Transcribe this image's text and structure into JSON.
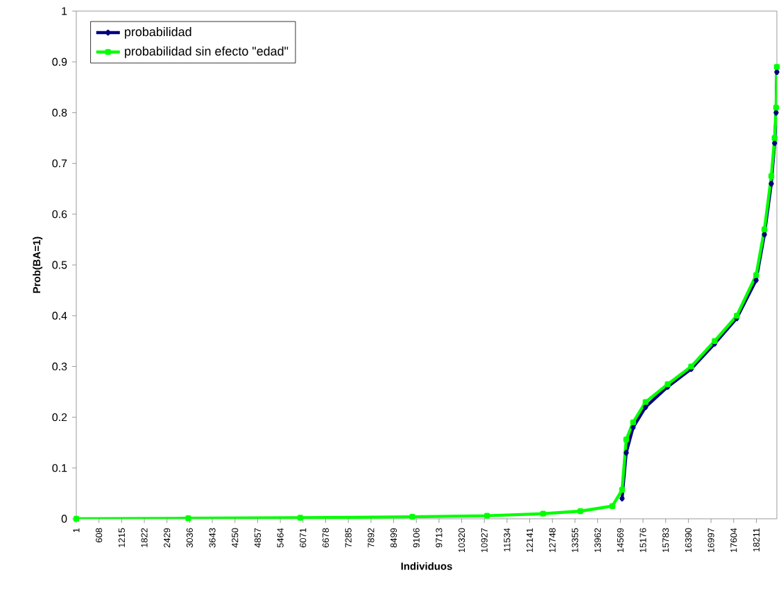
{
  "chart_data": {
    "type": "line",
    "xlabel": "Individuos",
    "ylabel": "Prob(BA=1)",
    "x": [
      1,
      3000,
      6000,
      9000,
      11000,
      12500,
      13500,
      14357,
      14616,
      14727,
      14912,
      15245,
      15837,
      16466,
      17095,
      17687,
      18205,
      18427,
      18612,
      18700,
      18740,
      18760
    ],
    "series": [
      {
        "name": "probabilidad",
        "color": "#000080",
        "marker": "diamond",
        "values": [
          null,
          null,
          null,
          null,
          null,
          null,
          null,
          null,
          0.04,
          0.13,
          0.18,
          0.22,
          0.26,
          0.295,
          0.345,
          0.395,
          0.47,
          0.56,
          0.66,
          0.74,
          0.8,
          0.88
        ]
      },
      {
        "name": "probabilidad sin efecto \"edad\"",
        "color": "#00ff00",
        "marker": "square",
        "values": [
          0,
          0.001,
          0.002,
          0.004,
          0.006,
          0.01,
          0.015,
          0.025,
          0.057,
          0.156,
          0.19,
          0.23,
          0.265,
          0.3,
          0.35,
          0.4,
          0.48,
          0.57,
          0.675,
          0.75,
          0.81,
          0.89
        ]
      }
    ],
    "xlim": [
      1,
      18760
    ],
    "xticks": [
      1,
      608,
      1215,
      1822,
      2429,
      3036,
      3643,
      4250,
      4857,
      5464,
      6071,
      6678,
      7285,
      7892,
      8499,
      9106,
      9713,
      10320,
      10927,
      11534,
      12141,
      12748,
      13355,
      13962,
      14569,
      15176,
      15783,
      16390,
      16997,
      17604,
      18211
    ],
    "ylim": [
      0,
      1
    ],
    "yticks": [
      0,
      0.1,
      0.2,
      0.3,
      0.4,
      0.5,
      0.6,
      0.7,
      0.8,
      0.9,
      1
    ],
    "legend": "top left",
    "grid": false,
    "line_style": "solid"
  }
}
